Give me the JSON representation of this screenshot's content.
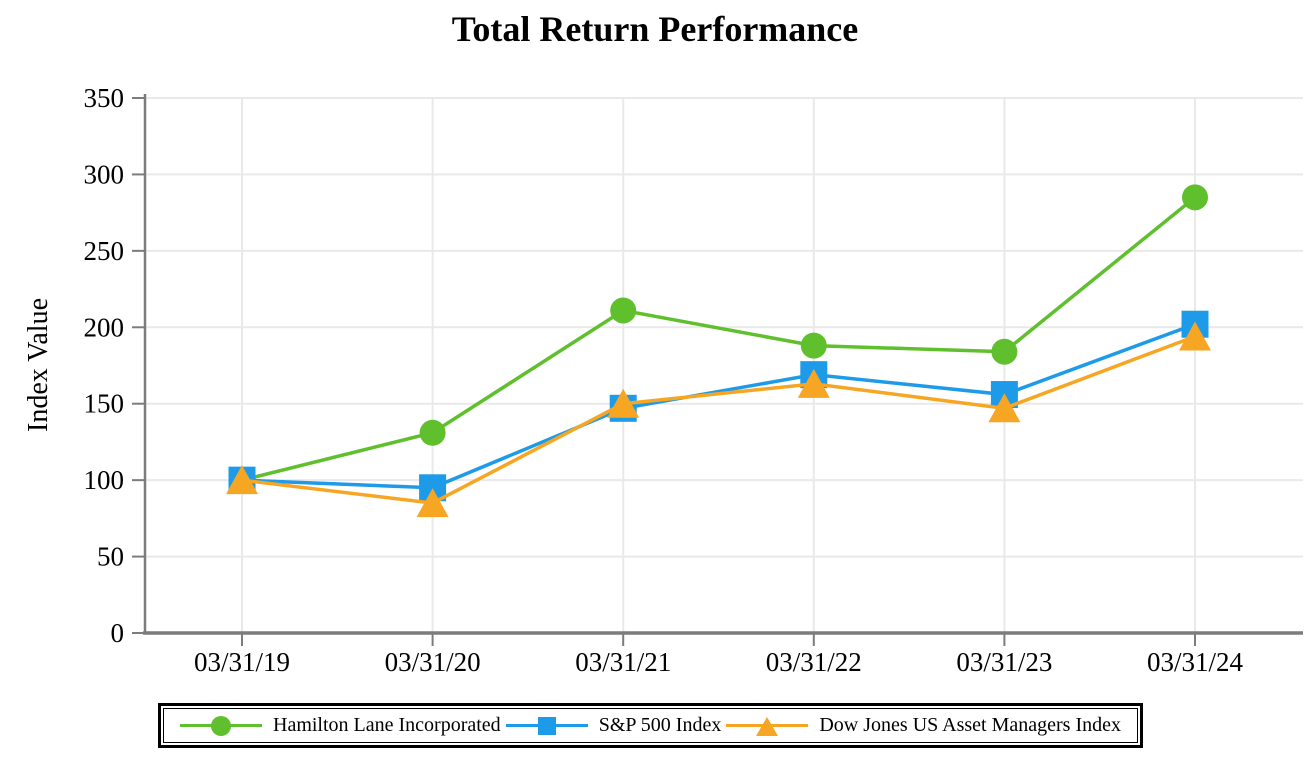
{
  "chart_data": {
    "type": "line",
    "title": "Total Return Performance",
    "ylabel": "Index Value",
    "xlabel": "",
    "ylim": [
      0,
      350
    ],
    "yticks": [
      0,
      50,
      100,
      150,
      200,
      250,
      300,
      350
    ],
    "categories": [
      "03/31/19",
      "03/31/20",
      "03/31/21",
      "03/31/22",
      "03/31/23",
      "03/31/24"
    ],
    "grid": true,
    "legend_position": "bottom-boxed",
    "colors": {
      "grid": "#E9E9E9",
      "axis": "#7C7C7C",
      "legend_border": "#000000",
      "text": "#000000"
    },
    "series": [
      {
        "name": "Hamilton Lane Incorporated",
        "marker": "circle",
        "color": "#5FBF2D",
        "values": [
          100,
          131,
          211,
          188,
          184,
          285
        ]
      },
      {
        "name": "S&P 500 Index",
        "marker": "square",
        "color": "#1E9BE8",
        "values": [
          100,
          95,
          147,
          169,
          156,
          202
        ]
      },
      {
        "name": "Dow Jones US Asset Managers Index",
        "marker": "triangle",
        "color": "#F6A623",
        "values": [
          100,
          85,
          150,
          163,
          147,
          194
        ]
      }
    ]
  }
}
